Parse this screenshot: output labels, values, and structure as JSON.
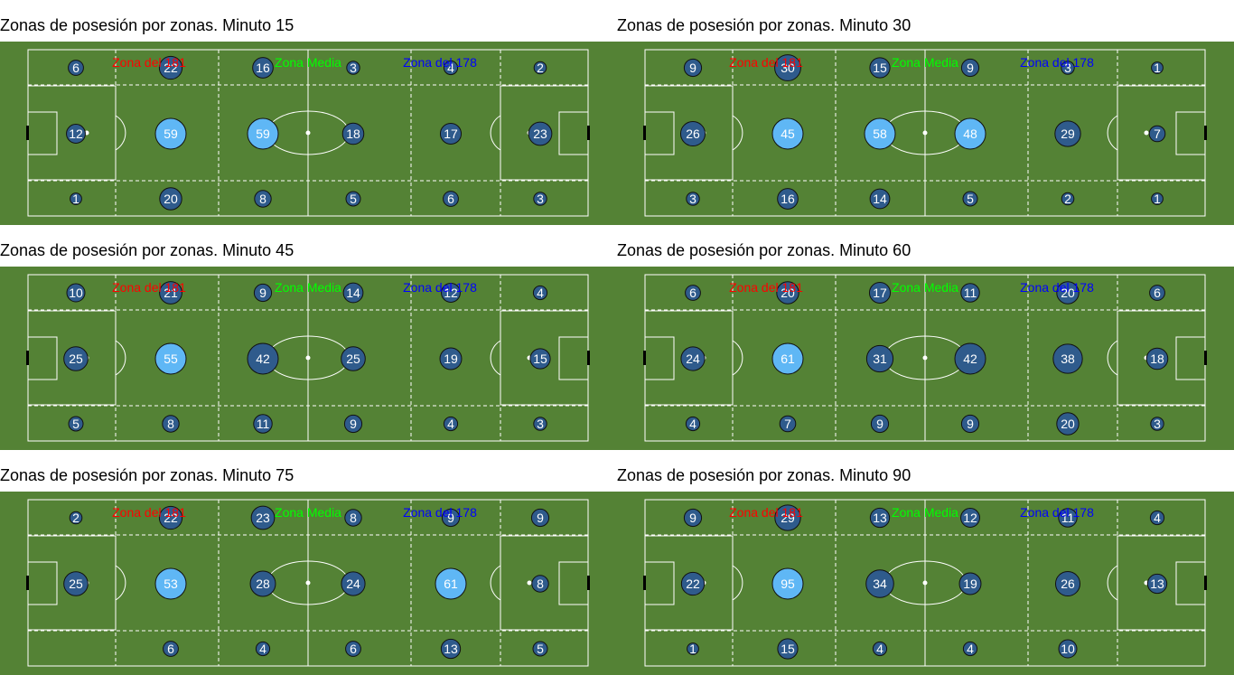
{
  "colors": {
    "grass": "#548235",
    "line": "#ffffff",
    "circle_low": "#2f5b8c",
    "circle_high": "#5fb7f5",
    "zone_left": "#ff0000",
    "zone_mid": "#00ff00",
    "zone_right": "#0000ff"
  },
  "zone_labels": {
    "left": "Zona del 181",
    "mid": "Zona Media",
    "right": "Zona del 178"
  },
  "chart_data": [
    {
      "type": "heatmap",
      "title": "Zonas de posesión por zonas. Minuto 15",
      "grid": [
        [
          6,
          22,
          16,
          3,
          4,
          2
        ],
        [
          12,
          59,
          59,
          18,
          17,
          23
        ],
        [
          1,
          20,
          8,
          5,
          6,
          3
        ]
      ]
    },
    {
      "type": "heatmap",
      "title": "Zonas de posesión por zonas. Minuto 30",
      "grid": [
        [
          9,
          30,
          15,
          9,
          3,
          1
        ],
        [
          26,
          45,
          58,
          48,
          29,
          7
        ],
        [
          3,
          16,
          14,
          5,
          2,
          1
        ]
      ]
    },
    {
      "type": "heatmap",
      "title": "Zonas de posesión por zonas. Minuto 45",
      "grid": [
        [
          10,
          21,
          9,
          14,
          12,
          4
        ],
        [
          25,
          55,
          42,
          25,
          19,
          15
        ],
        [
          5,
          8,
          11,
          9,
          4,
          3
        ]
      ]
    },
    {
      "type": "heatmap",
      "title": "Zonas de posesión por zonas. Minuto 60",
      "grid": [
        [
          6,
          20,
          17,
          11,
          20,
          6
        ],
        [
          24,
          61,
          31,
          42,
          38,
          18
        ],
        [
          4,
          7,
          9,
          9,
          20,
          3
        ]
      ]
    },
    {
      "type": "heatmap",
      "title": "Zonas de posesión por zonas. Minuto 75",
      "grid": [
        [
          2,
          22,
          23,
          8,
          9,
          9
        ],
        [
          25,
          53,
          28,
          24,
          61,
          8
        ],
        [
          0,
          6,
          4,
          6,
          13,
          5
        ]
      ]
    },
    {
      "type": "heatmap",
      "title": "Zonas de posesión por zonas. Minuto 90",
      "grid": [
        [
          9,
          29,
          13,
          12,
          11,
          4
        ],
        [
          22,
          95,
          34,
          19,
          26,
          13
        ],
        [
          1,
          15,
          4,
          4,
          10,
          0
        ]
      ]
    }
  ]
}
